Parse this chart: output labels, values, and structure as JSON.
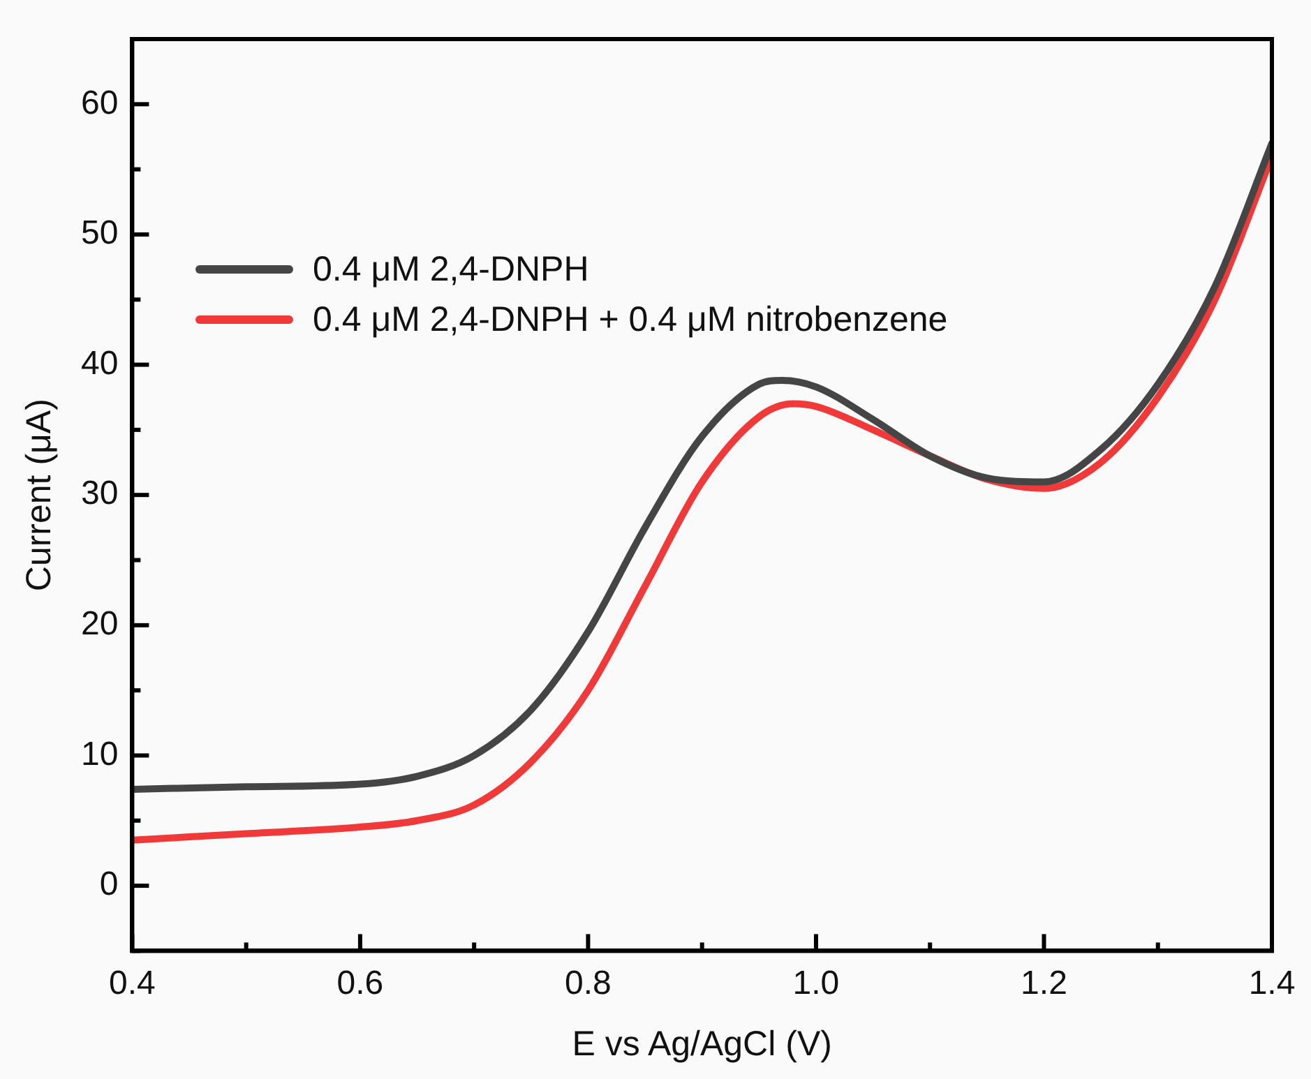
{
  "chart_data": {
    "type": "line",
    "xlabel": "E vs Ag/AgCl (V)",
    "ylabel": "Current (μA)",
    "xlim": [
      0.4,
      1.4
    ],
    "ylim": [
      -5,
      65
    ],
    "xticks": [
      0.4,
      {
        "value": 0.5,
        "label": null
      },
      0.6,
      {
        "value": 0.7,
        "label": null
      },
      0.8,
      {
        "value": 0.9,
        "label": null
      },
      {
        "value": 1.0,
        "label": "1.0"
      },
      {
        "value": 1.1,
        "label": null
      },
      1.2,
      {
        "value": 1.3,
        "label": null
      },
      1.4
    ],
    "yticks": [
      {
        "value": -5,
        "label": null
      },
      0,
      {
        "value": 5,
        "label": null
      },
      10,
      {
        "value": 15,
        "label": null
      },
      20,
      {
        "value": 25,
        "label": null
      },
      30,
      {
        "value": 35,
        "label": null
      },
      40,
      {
        "value": 45,
        "label": null
      },
      50,
      {
        "value": 55,
        "label": null
      },
      60,
      {
        "value": 65,
        "label": null
      }
    ],
    "grid": false,
    "legend": "top left",
    "marker": "none",
    "line_style": "solid",
    "series": [
      {
        "name": "0.4 μM 2,4-DNPH",
        "color": "#454545",
        "x": [
          0.4,
          0.5,
          0.6,
          0.65,
          0.7,
          0.75,
          0.8,
          0.85,
          0.9,
          0.95,
          0.97,
          1.0,
          1.05,
          1.1,
          1.15,
          1.2,
          1.25,
          1.3,
          1.35,
          1.4
        ],
        "values": [
          7.4,
          7.6,
          7.8,
          8.4,
          10,
          13.5,
          19.5,
          27.5,
          34.5,
          38.5,
          38.8,
          38.3,
          35.8,
          33,
          31.3,
          31,
          33.5,
          38.5,
          46,
          57
        ]
      },
      {
        "name": "0.4 μM 2,4-DNPH + 0.4 μM nitrobenzene",
        "color": "#f03a3a",
        "x": [
          0.4,
          0.5,
          0.6,
          0.65,
          0.7,
          0.75,
          0.8,
          0.85,
          0.9,
          0.95,
          0.98,
          1.0,
          1.05,
          1.1,
          1.15,
          1.2,
          1.25,
          1.3,
          1.35,
          1.4
        ],
        "values": [
          3.5,
          4.0,
          4.5,
          5,
          6.2,
          9.5,
          15,
          23,
          31,
          36,
          37,
          36.8,
          35,
          33,
          31.2,
          30.5,
          32.5,
          37.5,
          45,
          56
        ]
      }
    ]
  }
}
